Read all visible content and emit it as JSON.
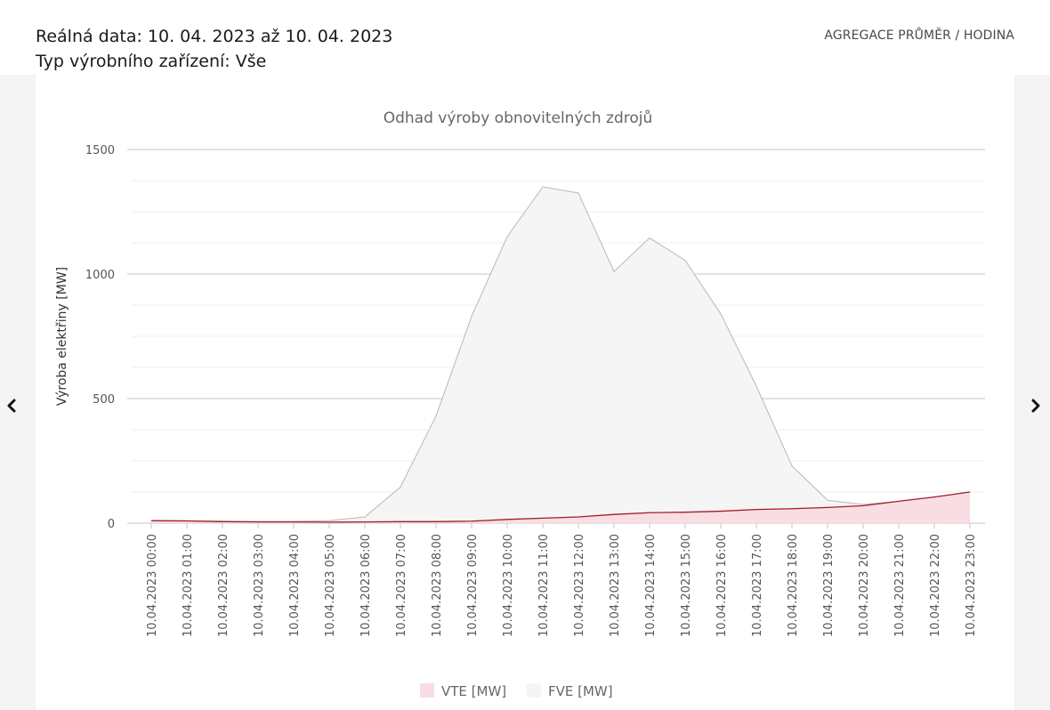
{
  "header": {
    "date_range": "Reálná data: 10. 04. 2023 až 10. 04. 2023",
    "device_type": "Typ výrobního zařízení: Vše",
    "aggregation_label": "AGREGACE PRŮMĚR / HODINA"
  },
  "navigation": {
    "prev_icon": "chevron-left-icon",
    "next_icon": "chevron-right-icon"
  },
  "chart_data": {
    "type": "area",
    "title": "Odhad výroby obnovitelných zdrojů",
    "xlabel": "",
    "ylabel": "Výroba elektřiny [MW]",
    "ylim": [
      0,
      1500
    ],
    "yticks": [
      0,
      500,
      1000,
      1500
    ],
    "grid": true,
    "legend_position": "bottom",
    "categories": [
      "10.04.2023 00:00",
      "10.04.2023 01:00",
      "10.04.2023 02:00",
      "10.04.2023 03:00",
      "10.04.2023 04:00",
      "10.04.2023 05:00",
      "10.04.2023 06:00",
      "10.04.2023 07:00",
      "10.04.2023 08:00",
      "10.04.2023 09:00",
      "10.04.2023 10:00",
      "10.04.2023 11:00",
      "10.04.2023 12:00",
      "10.04.2023 13:00",
      "10.04.2023 14:00",
      "10.04.2023 15:00",
      "10.04.2023 16:00",
      "10.04.2023 17:00",
      "10.04.2023 18:00",
      "10.04.2023 19:00",
      "10.04.2023 20:00",
      "10.04.2023 21:00",
      "10.04.2023 22:00",
      "10.04.2023 23:00"
    ],
    "series": [
      {
        "name": "FVE [MW]",
        "fill": "#f5f5f5",
        "line": "#b8b8b8",
        "values": [
          10,
          10,
          8,
          7,
          7,
          10,
          25,
          145,
          430,
          830,
          1150,
          1350,
          1325,
          1010,
          1145,
          1055,
          840,
          550,
          230,
          92,
          75,
          88,
          105,
          125
        ]
      },
      {
        "name": "VTE [MW]",
        "fill": "#f8dde2",
        "line": "#a31c2b",
        "values": [
          10,
          9,
          6,
          5,
          5,
          4,
          5,
          6,
          6,
          8,
          15,
          20,
          25,
          35,
          42,
          44,
          48,
          55,
          58,
          63,
          70,
          88,
          105,
          125
        ]
      }
    ]
  }
}
